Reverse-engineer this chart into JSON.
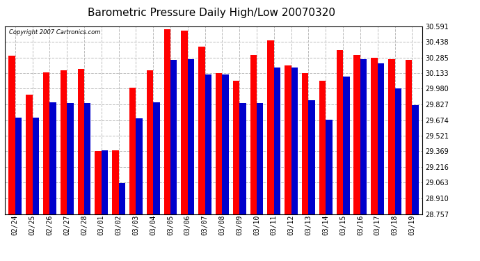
{
  "title": "Barometric Pressure Daily High/Low 20070320",
  "copyright": "Copyright 2007 Cartronics.com",
  "dates": [
    "02/24",
    "02/25",
    "02/26",
    "02/27",
    "02/28",
    "03/01",
    "03/02",
    "03/03",
    "03/04",
    "03/05",
    "03/06",
    "03/07",
    "03/08",
    "03/09",
    "03/10",
    "03/11",
    "03/12",
    "03/13",
    "03/14",
    "03/15",
    "03/16",
    "03/17",
    "03/18",
    "03/19"
  ],
  "highs": [
    30.3,
    29.92,
    30.14,
    30.16,
    30.17,
    29.37,
    29.38,
    29.99,
    30.16,
    30.56,
    30.55,
    30.39,
    30.13,
    30.06,
    30.31,
    30.45,
    30.21,
    30.133,
    30.06,
    30.36,
    30.31,
    30.28,
    30.27,
    30.26
  ],
  "lows": [
    29.7,
    29.7,
    29.85,
    29.84,
    29.84,
    29.38,
    29.06,
    29.69,
    29.85,
    30.26,
    30.27,
    30.12,
    30.12,
    29.84,
    29.84,
    30.19,
    30.19,
    29.87,
    29.68,
    30.1,
    30.27,
    30.23,
    29.98,
    29.82
  ],
  "yticks": [
    28.757,
    28.91,
    29.063,
    29.216,
    29.369,
    29.521,
    29.674,
    29.827,
    29.98,
    30.133,
    30.285,
    30.438,
    30.591
  ],
  "ymin": 28.757,
  "ymax": 30.591,
  "high_color": "#FF0000",
  "low_color": "#0000CC",
  "bg_color": "#FFFFFF",
  "grid_color": "#BBBBBB",
  "title_fontsize": 11,
  "tick_fontsize": 7,
  "copyright_fontsize": 6
}
